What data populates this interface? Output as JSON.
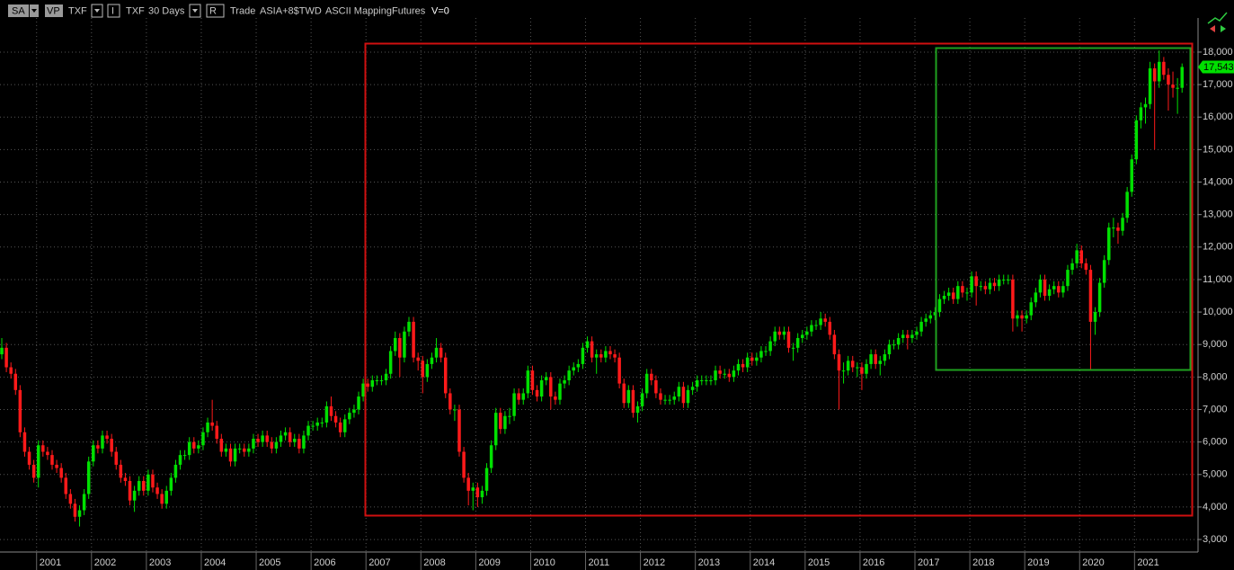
{
  "toolbar": {
    "symbol_box": "SA",
    "vp_box": "VP",
    "symbol": "TXF",
    "i_box": "I",
    "symbol2": "TXF",
    "period": "30 Days",
    "r_box": "R",
    "field": "Trade",
    "session": "ASIA+8$TWD",
    "mapping": "ASCII Mapping",
    "kind": "Futures",
    "volume": "V=0"
  },
  "chart_data": {
    "type": "candlestick",
    "up_color": "#00e000",
    "down_color": "#ff1a1a",
    "grid": true,
    "ylim": [
      2670,
      19050
    ],
    "yticks": [
      {
        "value": 3000,
        "label": "3,000"
      },
      {
        "value": 4000,
        "label": "4,000"
      },
      {
        "value": 5000,
        "label": "5,000"
      },
      {
        "value": 6000,
        "label": "6,000"
      },
      {
        "value": 7000,
        "label": "7,000"
      },
      {
        "value": 8000,
        "label": "8,000"
      },
      {
        "value": 9000,
        "label": "9,000"
      },
      {
        "value": 10000,
        "label": "10,000"
      },
      {
        "value": 11000,
        "label": "11,000"
      },
      {
        "value": 12000,
        "label": "12,000"
      },
      {
        "value": 13000,
        "label": "13,000"
      },
      {
        "value": 14000,
        "label": "14,000"
      },
      {
        "value": 15000,
        "label": "15,000"
      },
      {
        "value": 16000,
        "label": "16,000"
      },
      {
        "value": 17000,
        "label": "17,000"
      },
      {
        "value": 18000,
        "label": "18,000"
      }
    ],
    "last_value": 17543,
    "last_value_label": "17,543",
    "categories": [
      null,
      null,
      null,
      null,
      null,
      null,
      null,
      null,
      "2001",
      null,
      null,
      null,
      null,
      null,
      null,
      null,
      null,
      null,
      null,
      null,
      "2002",
      null,
      null,
      null,
      null,
      null,
      null,
      null,
      null,
      null,
      null,
      null,
      "2003",
      null,
      null,
      null,
      null,
      null,
      null,
      null,
      null,
      null,
      null,
      null,
      "2004",
      null,
      null,
      null,
      null,
      null,
      null,
      null,
      null,
      null,
      null,
      null,
      "2005",
      null,
      null,
      null,
      null,
      null,
      null,
      null,
      null,
      null,
      null,
      null,
      "2006",
      null,
      null,
      null,
      null,
      null,
      null,
      null,
      null,
      null,
      null,
      null,
      "2007",
      null,
      null,
      null,
      null,
      null,
      null,
      null,
      null,
      null,
      null,
      null,
      "2008",
      null,
      null,
      null,
      null,
      null,
      null,
      null,
      null,
      null,
      null,
      null,
      "2009",
      null,
      null,
      null,
      null,
      null,
      null,
      null,
      null,
      null,
      null,
      null,
      "2010",
      null,
      null,
      null,
      null,
      null,
      null,
      null,
      null,
      null,
      null,
      null,
      "2011",
      null,
      null,
      null,
      null,
      null,
      null,
      null,
      null,
      null,
      null,
      null,
      "2012",
      null,
      null,
      null,
      null,
      null,
      null,
      null,
      null,
      null,
      null,
      null,
      "2013",
      null,
      null,
      null,
      null,
      null,
      null,
      null,
      null,
      null,
      null,
      null,
      "2014",
      null,
      null,
      null,
      null,
      null,
      null,
      null,
      null,
      null,
      null,
      null,
      "2015",
      null,
      null,
      null,
      null,
      null,
      null,
      null,
      null,
      null,
      null,
      null,
      "2016",
      null,
      null,
      null,
      null,
      null,
      null,
      null,
      null,
      null,
      null,
      null,
      "2017",
      null,
      null,
      null,
      null,
      null,
      null,
      null,
      null,
      null,
      null,
      null,
      "2018",
      null,
      null,
      null,
      null,
      null,
      null,
      null,
      null,
      null,
      null,
      null,
      "2019",
      null,
      null,
      null,
      null,
      null,
      null,
      null,
      null,
      null,
      null,
      null,
      "2020",
      null,
      null,
      null,
      null,
      null,
      null,
      null,
      null,
      null,
      null,
      null,
      "2021",
      null,
      null,
      null,
      null,
      null,
      null,
      null,
      null,
      null,
      null
    ],
    "open": [
      8700,
      8900,
      8300,
      8100,
      7600,
      6300,
      5700,
      5300,
      4900,
      5900,
      5700,
      5600,
      5300,
      5200,
      4900,
      4400,
      4100,
      3700,
      3900,
      4400,
      5400,
      5900,
      5800,
      6200,
      6100,
      5700,
      5300,
      4900,
      4800,
      4200,
      4500,
      4800,
      4500,
      5000,
      4600,
      4400,
      4100,
      4500,
      4900,
      5300,
      5600,
      5600,
      6000,
      5800,
      5900,
      6300,
      6600,
      6500,
      6100,
      5700,
      5800,
      5400,
      5800,
      5800,
      5700,
      5800,
      6100,
      6000,
      6200,
      6000,
      5800,
      6000,
      6200,
      6300,
      6000,
      6100,
      5800,
      6200,
      6500,
      6500,
      6600,
      6600,
      7100,
      6800,
      6600,
      6300,
      6700,
      6900,
      7000,
      7400,
      7800,
      7700,
      7900,
      7900,
      7900,
      8100,
      8800,
      9200,
      8600,
      9400,
      9700,
      8600,
      8500,
      8000,
      8400,
      8600,
      8900,
      8600,
      7500,
      7000,
      7000,
      5700,
      4900,
      4500,
      4600,
      4300,
      4500,
      5200,
      5900,
      6900,
      6400,
      6800,
      6800,
      7500,
      7300,
      7500,
      8200,
      7600,
      7400,
      7900,
      8000,
      7400,
      7300,
      7800,
      7900,
      8200,
      8300,
      8400,
      8900,
      9100,
      8600,
      8700,
      8600,
      8800,
      8700,
      8600,
      7800,
      7200,
      7600,
      6900,
      7100,
      7500,
      8100,
      7900,
      7500,
      7300,
      7300,
      7300,
      7400,
      7700,
      7200,
      7600,
      7700,
      7900,
      7900,
      7900,
      7900,
      8200,
      8100,
      8100,
      8000,
      8200,
      8400,
      8300,
      8600,
      8500,
      8600,
      8800,
      8800,
      9100,
      9400,
      9300,
      9400,
      8900,
      8900,
      9200,
      9300,
      9400,
      9600,
      9600,
      9800,
      9700,
      9300,
      8700,
      8200,
      8200,
      8500,
      8300,
      8300,
      8100,
      8400,
      8700,
      8400,
      8500,
      8700,
      9000,
      9000,
      9200,
      9300,
      9200,
      9300,
      9400,
      9700,
      9800,
      9900,
      10000,
      10400,
      10500,
      10600,
      10400,
      10800,
      10600,
      10600,
      11100,
      10800,
      10800,
      10700,
      10900,
      10800,
      11000,
      11000,
      11000,
      9800,
      9900,
      9800,
      9900,
      10300,
      10600,
      11000,
      10500,
      10700,
      10800,
      10600,
      10800,
      11300,
      11500,
      11900,
      11500,
      11300,
      9700,
      10000,
      10900,
      11600,
      12600,
      12600,
      12500,
      12900,
      13700,
      14700,
      15900,
      16300,
      16400,
      17500,
      17100,
      17700,
      17300,
      17000,
      16900,
      16900
    ],
    "high": [
      9200,
      9050,
      8450,
      8250,
      7750,
      6450,
      5850,
      5450,
      6050,
      6050,
      5850,
      5750,
      5450,
      5350,
      5050,
      4550,
      4250,
      4050,
      4550,
      5550,
      6050,
      6050,
      6350,
      6350,
      6250,
      5850,
      5450,
      5050,
      4950,
      4650,
      4950,
      4950,
      5150,
      5150,
      4750,
      4550,
      4650,
      5050,
      5450,
      5750,
      5750,
      6150,
      6150,
      6050,
      6450,
      6750,
      7300,
      6650,
      6250,
      5950,
      5950,
      5950,
      5950,
      5950,
      5950,
      6250,
      6250,
      6350,
      6350,
      6150,
      6150,
      6350,
      6450,
      6450,
      6250,
      6250,
      6350,
      6650,
      6650,
      6750,
      6750,
      7250,
      7400,
      6950,
      6750,
      6850,
      7050,
      7150,
      7550,
      7950,
      7950,
      8050,
      8050,
      8050,
      8250,
      8950,
      9400,
      9350,
      9550,
      9850,
      9850,
      8750,
      8650,
      8550,
      8750,
      9200,
      9050,
      8750,
      7650,
      7150,
      7150,
      5850,
      5050,
      4750,
      4750,
      4650,
      5350,
      6050,
      7050,
      7050,
      6950,
      7050,
      7650,
      7650,
      7650,
      8350,
      8350,
      7750,
      8050,
      8150,
      8150,
      7550,
      7950,
      8050,
      8350,
      8450,
      8550,
      9050,
      9250,
      9250,
      8850,
      8850,
      8950,
      8950,
      8850,
      8750,
      7950,
      7750,
      7750,
      7250,
      7650,
      8250,
      8250,
      8050,
      7650,
      7450,
      7450,
      7550,
      7850,
      7850,
      7750,
      7850,
      8050,
      8050,
      8050,
      8050,
      8350,
      8350,
      8250,
      8250,
      8350,
      8550,
      8550,
      8750,
      8750,
      8750,
      8950,
      8950,
      9250,
      9550,
      9550,
      9550,
      9550,
      9050,
      9350,
      9450,
      9550,
      9750,
      9750,
      10000,
      9950,
      9850,
      9450,
      8850,
      8450,
      8650,
      8650,
      8450,
      8450,
      8550,
      8850,
      8850,
      8650,
      8850,
      9150,
      9150,
      9350,
      9450,
      9450,
      9450,
      9550,
      9850,
      9950,
      10050,
      10150,
      10550,
      10650,
      10750,
      10750,
      10950,
      10950,
      10750,
      11250,
      11250,
      10950,
      10950,
      11050,
      11050,
      11150,
      11150,
      11150,
      11150,
      10050,
      10050,
      10050,
      10450,
      10750,
      11150,
      11150,
      10850,
      10950,
      10950,
      10950,
      11450,
      11650,
      12100,
      12050,
      11650,
      11450,
      10150,
      11050,
      11750,
      12750,
      12900,
      12750,
      13050,
      13850,
      14850,
      16050,
      16450,
      16600,
      17700,
      17650,
      18050,
      17850,
      17500,
      17400,
      17200,
      17650
    ],
    "low": [
      8550,
      8150,
      7950,
      7450,
      6150,
      5550,
      5150,
      4750,
      4600,
      5550,
      5450,
      5150,
      5050,
      4750,
      4250,
      3950,
      3550,
      3400,
      3750,
      4250,
      5250,
      5650,
      5650,
      5950,
      5550,
      5150,
      4750,
      4650,
      4050,
      3850,
      4350,
      4350,
      4350,
      4450,
      4250,
      3950,
      3950,
      4350,
      4750,
      5150,
      5450,
      5450,
      5650,
      5650,
      5750,
      6150,
      6350,
      5950,
      5550,
      5550,
      5250,
      5250,
      5650,
      5550,
      5550,
      5650,
      5850,
      5850,
      5850,
      5650,
      5650,
      5850,
      6050,
      5850,
      5850,
      5650,
      5650,
      6050,
      6350,
      6350,
      6450,
      6450,
      6650,
      6450,
      6150,
      6150,
      6550,
      6750,
      6850,
      7250,
      7550,
      7550,
      7750,
      7750,
      7750,
      7950,
      8650,
      8000,
      8450,
      9250,
      8450,
      8200,
      7500,
      7850,
      8250,
      8450,
      8450,
      7350,
      6850,
      6650,
      5550,
      4750,
      4050,
      3900,
      4000,
      4100,
      4350,
      5050,
      5750,
      6250,
      6250,
      6550,
      6650,
      7150,
      7150,
      7350,
      7450,
      7250,
      7250,
      7750,
      7000,
      7150,
      7150,
      7650,
      7750,
      8050,
      8150,
      8250,
      8750,
      8450,
      8100,
      8450,
      8450,
      8550,
      8450,
      7650,
      7050,
      7050,
      6750,
      6600,
      6950,
      7350,
      7750,
      7350,
      7150,
      7150,
      7150,
      7150,
      7250,
      7050,
      7050,
      7450,
      7550,
      7750,
      7750,
      7750,
      7750,
      7950,
      7950,
      7850,
      7850,
      8050,
      8150,
      8150,
      8350,
      8350,
      8450,
      8650,
      8650,
      8950,
      9150,
      9150,
      8750,
      8500,
      8750,
      9050,
      9150,
      9250,
      9450,
      9450,
      9550,
      9150,
      8550,
      7000,
      7800,
      8050,
      8150,
      8000,
      7600,
      7950,
      8250,
      8250,
      8050,
      8350,
      8550,
      8850,
      8850,
      9050,
      8850,
      9050,
      9150,
      9250,
      9550,
      9650,
      9750,
      9850,
      10250,
      10350,
      10250,
      10250,
      10450,
      10350,
      10450,
      10200,
      10650,
      10550,
      10550,
      10650,
      10650,
      10850,
      10850,
      9400,
      9550,
      9400,
      9650,
      9750,
      10150,
      10450,
      10350,
      10350,
      10550,
      10450,
      10450,
      10650,
      11150,
      11350,
      11350,
      11150,
      8200,
      9300,
      9850,
      10750,
      11450,
      12300,
      12100,
      12350,
      12750,
      13550,
      14550,
      15650,
      15800,
      16250,
      15000,
      16900,
      17150,
      16200,
      16600,
      16100,
      16750
    ],
    "close": [
      8900,
      8300,
      8100,
      7600,
      6300,
      5700,
      5300,
      4900,
      5900,
      5700,
      5600,
      5300,
      5200,
      4900,
      4400,
      4100,
      3700,
      3900,
      4400,
      5400,
      5900,
      5800,
      6200,
      6100,
      5700,
      5300,
      4900,
      4800,
      4200,
      4500,
      4800,
      4500,
      5000,
      4600,
      4400,
      4100,
      4500,
      4900,
      5300,
      5600,
      5600,
      6000,
      5800,
      5900,
      6300,
      6600,
      6500,
      6100,
      5700,
      5800,
      5400,
      5800,
      5800,
      5700,
      5800,
      6100,
      6000,
      6200,
      6000,
      5800,
      6000,
      6200,
      6300,
      6000,
      6100,
      5800,
      6200,
      6500,
      6500,
      6600,
      6600,
      7100,
      6800,
      6600,
      6300,
      6700,
      6900,
      7000,
      7400,
      7800,
      7700,
      7900,
      7900,
      7900,
      8100,
      8800,
      9200,
      8600,
      9400,
      9700,
      8600,
      8500,
      8000,
      8400,
      8600,
      8900,
      8600,
      7500,
      7000,
      7000,
      5700,
      4900,
      4500,
      4600,
      4300,
      4500,
      5200,
      5900,
      6900,
      6400,
      6800,
      6800,
      7500,
      7300,
      7500,
      8200,
      7600,
      7400,
      7900,
      8000,
      7400,
      7300,
      7800,
      7900,
      8200,
      8300,
      8400,
      8900,
      9100,
      8600,
      8700,
      8600,
      8800,
      8700,
      8600,
      7800,
      7200,
      7600,
      6900,
      7100,
      7500,
      8100,
      7900,
      7500,
      7300,
      7300,
      7300,
      7400,
      7700,
      7200,
      7600,
      7700,
      7900,
      7900,
      7900,
      7900,
      8200,
      8100,
      8100,
      8000,
      8200,
      8400,
      8300,
      8600,
      8500,
      8600,
      8800,
      8800,
      9100,
      9400,
      9300,
      9400,
      8900,
      8900,
      9200,
      9300,
      9400,
      9600,
      9600,
      9800,
      9700,
      9300,
      8700,
      8200,
      8200,
      8500,
      8300,
      8300,
      8100,
      8400,
      8700,
      8400,
      8500,
      8700,
      9000,
      9000,
      9200,
      9300,
      9200,
      9300,
      9400,
      9700,
      9800,
      9900,
      10000,
      10400,
      10500,
      10600,
      10400,
      10800,
      10600,
      10600,
      11100,
      10800,
      10800,
      10700,
      10900,
      10800,
      11000,
      11000,
      11000,
      9800,
      9900,
      9800,
      9900,
      10300,
      10600,
      11000,
      10500,
      10700,
      10800,
      10600,
      10800,
      11300,
      11500,
      11900,
      11500,
      11300,
      9700,
      10000,
      10900,
      11600,
      12600,
      12600,
      12500,
      12900,
      13700,
      14700,
      15900,
      16300,
      16400,
      17500,
      17100,
      17700,
      17300,
      17000,
      16900,
      16900,
      17543
    ]
  }
}
